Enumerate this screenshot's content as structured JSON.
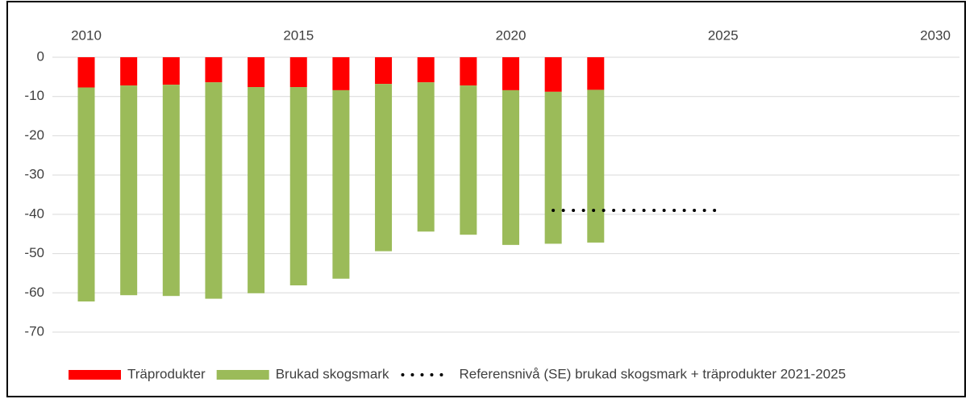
{
  "chart_data": {
    "type": "bar",
    "stacked": true,
    "grid": true,
    "legend": "bottom",
    "x": [
      2010,
      2011,
      2012,
      2013,
      2014,
      2015,
      2016,
      2017,
      2018,
      2019,
      2020,
      2021,
      2022
    ],
    "xlim": [
      2010,
      2030
    ],
    "xticks": [
      2010,
      2015,
      2020,
      2025,
      2030
    ],
    "ylim": [
      -70,
      0
    ],
    "yticks": [
      0,
      -10,
      -20,
      -30,
      -40,
      -50,
      -60,
      -70
    ],
    "series": [
      {
        "name": "Träprodukter",
        "type": "bar",
        "color": "#ff0000",
        "values": [
          -7.7,
          -7.2,
          -7.0,
          -6.4,
          -7.6,
          -7.6,
          -8.4,
          -6.8,
          -6.4,
          -7.2,
          -8.4,
          -8.8,
          -8.3
        ]
      },
      {
        "name": "Brukad skogsmark",
        "type": "bar",
        "color": "#9bbb59",
        "values": [
          -54.5,
          -53.4,
          -53.8,
          -55.1,
          -52.5,
          -50.5,
          -48.0,
          -42.6,
          -38.0,
          -38.0,
          -39.4,
          -38.7,
          -38.9
        ]
      },
      {
        "name": "Referensnivå (SE) brukad skogsmark + träprodukter 2021-2025",
        "type": "line",
        "color": "#000000",
        "x": [
          2021,
          2025
        ],
        "values": [
          -39,
          -39
        ]
      }
    ]
  }
}
